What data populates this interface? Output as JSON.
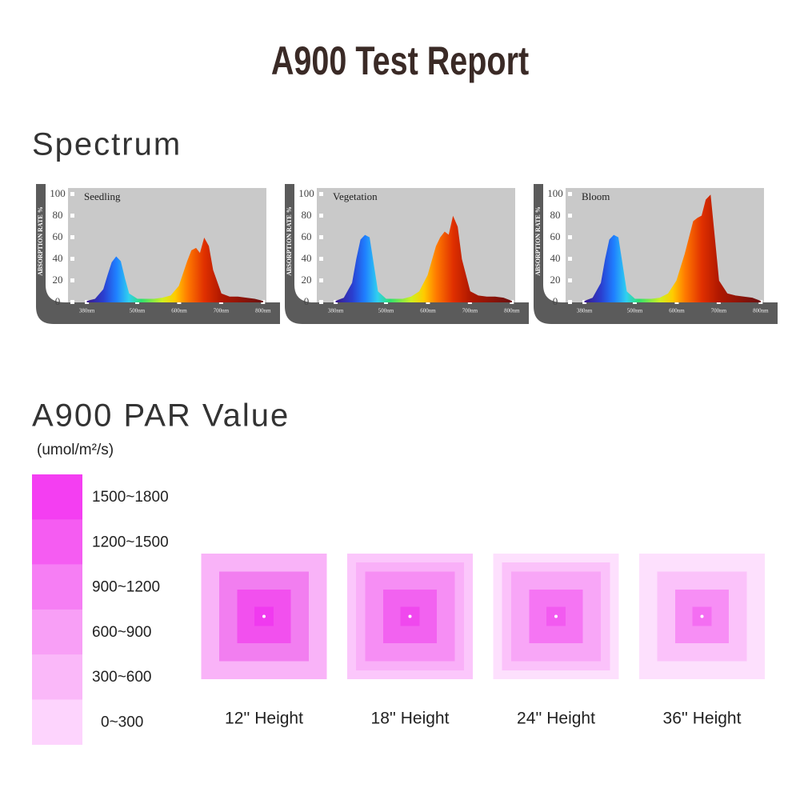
{
  "title": "A900 Test Report",
  "spectrum": {
    "heading": "Spectrum",
    "y_label": "ABSORPTION RATE %",
    "ylim": [
      0,
      100
    ],
    "yticks": [
      0,
      20,
      40,
      60,
      80,
      100
    ],
    "xlim": [
      335,
      808
    ],
    "xticks": [
      {
        "value": 380,
        "label": "380nm"
      },
      {
        "value": 500,
        "label": "500nm"
      },
      {
        "value": 600,
        "label": "600nm"
      },
      {
        "value": 700,
        "label": "700nm"
      },
      {
        "value": 800,
        "label": "800nm"
      }
    ],
    "panels": [
      {
        "name": "Seedling",
        "x": [
          380,
          400,
          420,
          430,
          440,
          450,
          460,
          470,
          480,
          500,
          520,
          540,
          560,
          580,
          600,
          620,
          630,
          640,
          650,
          660,
          670,
          680,
          700,
          720,
          740,
          760,
          780,
          800
        ],
        "values": [
          1,
          3,
          12,
          25,
          37,
          42,
          38,
          22,
          8,
          3,
          3,
          3,
          4,
          6,
          15,
          38,
          48,
          50,
          45,
          59,
          52,
          30,
          8,
          5,
          5,
          4,
          3,
          1
        ]
      },
      {
        "name": "Vegetation",
        "x": [
          380,
          400,
          420,
          430,
          440,
          450,
          460,
          470,
          480,
          500,
          520,
          540,
          560,
          580,
          600,
          620,
          630,
          640,
          650,
          660,
          670,
          680,
          700,
          720,
          740,
          760,
          780,
          800
        ],
        "values": [
          1,
          4,
          18,
          40,
          58,
          62,
          60,
          35,
          10,
          3,
          3,
          3,
          5,
          10,
          25,
          52,
          60,
          65,
          62,
          79,
          70,
          40,
          10,
          6,
          5,
          5,
          4,
          1
        ]
      },
      {
        "name": "Bloom",
        "x": [
          380,
          400,
          420,
          430,
          440,
          450,
          460,
          470,
          480,
          500,
          520,
          540,
          560,
          580,
          600,
          620,
          630,
          640,
          650,
          660,
          670,
          680,
          700,
          720,
          740,
          760,
          780,
          800
        ],
        "values": [
          1,
          4,
          18,
          40,
          58,
          62,
          60,
          35,
          10,
          3,
          3,
          3,
          4,
          8,
          20,
          45,
          60,
          75,
          78,
          80,
          95,
          99,
          20,
          8,
          6,
          5,
          4,
          1
        ]
      }
    ]
  },
  "par": {
    "heading": "A900 PAR Value",
    "unit": "(umol/m²/s)",
    "legend": [
      {
        "label": "1500~1800",
        "color": "#f43ef2"
      },
      {
        "label": "1200~1500",
        "color": "#f55cf2"
      },
      {
        "label": "900~1200",
        "color": "#f67ef4"
      },
      {
        "label": "600~900",
        "color": "#f89ff6"
      },
      {
        "label": "300~600",
        "color": "#fab8f9"
      },
      {
        "label": "0~300",
        "color": "#fdd4fd"
      }
    ],
    "maps": [
      {
        "label": "12'' Height",
        "colors": [
          "#f9b3f8",
          "#f27ef0",
          "#f250ee",
          "#f03aef"
        ]
      },
      {
        "label": "18'' Height",
        "colors": [
          "#fbc7fb",
          "#f9b0f8",
          "#f68ef4",
          "#f262f0",
          "#f048ee"
        ]
      },
      {
        "label": "24'' Height",
        "colors": [
          "#fde0fd",
          "#fbc2fa",
          "#f8a6f7",
          "#f575f3",
          "#f25af0"
        ]
      },
      {
        "label": "36'' Height",
        "colors": [
          "#fde0fd",
          "#fbc2fa",
          "#f78ef5",
          "#f46ef2"
        ]
      }
    ]
  }
}
